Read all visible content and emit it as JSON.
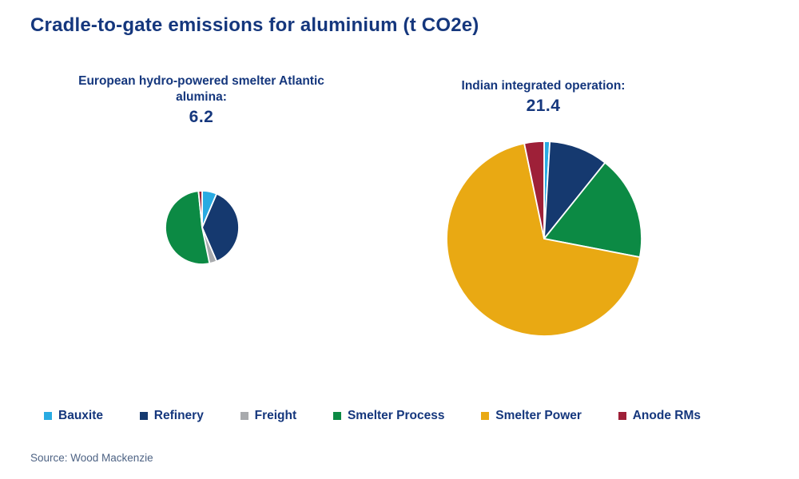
{
  "title": "Cradle-to-gate emissions for aluminium (t CO2e)",
  "source": "Source: Wood Mackenzie",
  "colors": {
    "bauxite": "#29abe2",
    "refinery": "#15396f",
    "freight": "#a8aaad",
    "smelter_process": "#0c8a44",
    "smelter_power": "#e9a913",
    "anode_rms": "#9e2038",
    "text_navy": "#15377d",
    "source_text": "#4e6384",
    "slice_border": "#ffffff"
  },
  "legend": [
    {
      "label": "Bauxite",
      "color": "#29abe2"
    },
    {
      "label": "Refinery",
      "color": "#15396f"
    },
    {
      "label": "Freight",
      "color": "#a8aaad"
    },
    {
      "label": "Smelter Process",
      "color": "#0c8a44"
    },
    {
      "label": "Smelter Power",
      "color": "#e9a913"
    },
    {
      "label": "Anode RMs",
      "color": "#9e2038"
    }
  ],
  "chart_data": [
    {
      "type": "pie",
      "title": "European hydro-powered smelter Atlantic alumina:",
      "total": 6.2,
      "total_label": "6.2",
      "categories": [
        "Bauxite",
        "Refinery",
        "Freight",
        "Smelter Process",
        "Smelter Power",
        "Anode RMs"
      ],
      "values": [
        0.4,
        2.3,
        0.2,
        3.2,
        0,
        0.1
      ],
      "colors": [
        "#29abe2",
        "#15396f",
        "#a8aaad",
        "#0c8a44",
        "#e9a913",
        "#9e2038"
      ],
      "start_angle_deg": 0,
      "direction": "clockwise",
      "radius_px": 46
    },
    {
      "type": "pie",
      "title": "Indian integrated operation:",
      "total": 21.4,
      "total_label": "21.4",
      "categories": [
        "Bauxite",
        "Refinery",
        "Freight",
        "Smelter Process",
        "Smelter Power",
        "Anode RMs"
      ],
      "values": [
        0.2,
        2.1,
        0,
        3.7,
        14.7,
        0.7
      ],
      "colors": [
        "#29abe2",
        "#15396f",
        "#a8aaad",
        "#0c8a44",
        "#e9a913",
        "#9e2038"
      ],
      "start_angle_deg": 0,
      "direction": "clockwise",
      "radius_px": 122
    }
  ]
}
